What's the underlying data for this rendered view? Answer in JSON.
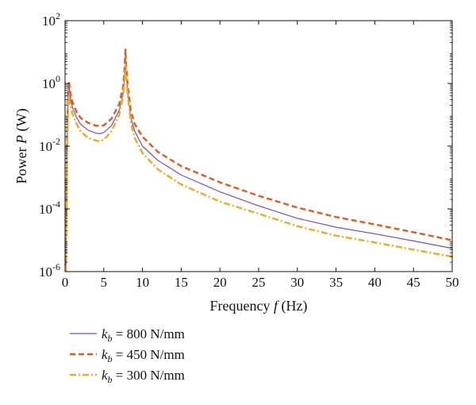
{
  "chart_data": {
    "type": "line",
    "xlabel": {
      "pre": "Frequency ",
      "var": "f",
      "post": " (Hz)"
    },
    "ylabel": {
      "pre": "Power ",
      "var": "P",
      "post": " (W)"
    },
    "xlim": [
      0,
      50
    ],
    "ylim": [
      1e-06,
      100
    ],
    "yscale": "log",
    "grid": false,
    "legend_position": "bottom-left",
    "x_ticks": [
      "0",
      "5",
      "10",
      "15",
      "20",
      "25",
      "30",
      "35",
      "40",
      "45",
      "50"
    ],
    "y_ticks": [
      {
        "base": "10",
        "exp": "-6"
      },
      {
        "base": "10",
        "exp": "-4"
      },
      {
        "base": "10",
        "exp": "-2"
      },
      {
        "base": "10",
        "exp": "0"
      },
      {
        "base": "10",
        "exp": "2"
      }
    ],
    "series": [
      {
        "name": "k_b = 800 N/mm",
        "label": {
          "sym": "k",
          "sub": "b",
          "rest": " = 800 N/mm"
        },
        "color": "#7a4db8",
        "style": "solid",
        "x": [
          0.1,
          0.25,
          0.4,
          0.5,
          0.6,
          0.8,
          1.0,
          1.5,
          2,
          3,
          4,
          4.5,
          5,
          6,
          7,
          7.5,
          7.7,
          7.8,
          7.9,
          8.1,
          8.5,
          9,
          10,
          12,
          15,
          20,
          25,
          30,
          35,
          40,
          45,
          50
        ],
        "y": [
          1e-06,
          0.01,
          0.5,
          1.0,
          0.5,
          0.25,
          0.16,
          0.08,
          0.05,
          0.032,
          0.026,
          0.025,
          0.027,
          0.045,
          0.14,
          0.5,
          2.0,
          5.5,
          2.0,
          0.5,
          0.08,
          0.03,
          0.01,
          0.0035,
          0.0012,
          0.00035,
          0.000125,
          5e-05,
          2.6e-05,
          1.6e-05,
          9.5e-06,
          5.5e-06
        ]
      },
      {
        "name": "k_b = 450 N/mm",
        "label": {
          "sym": "k",
          "sub": "b",
          "rest": " = 450 N/mm"
        },
        "color": "#e05a1e",
        "style": "dashed",
        "x": [
          0.1,
          0.25,
          0.4,
          0.5,
          0.6,
          0.8,
          1.0,
          1.5,
          2,
          3,
          4,
          4.5,
          5,
          6,
          7,
          7.5,
          7.7,
          7.8,
          7.9,
          8.1,
          8.5,
          9,
          10,
          12,
          15,
          20,
          25,
          30,
          35,
          40,
          45,
          50
        ],
        "y": [
          1e-06,
          0.02,
          0.7,
          1.2,
          0.7,
          0.35,
          0.24,
          0.12,
          0.08,
          0.055,
          0.045,
          0.044,
          0.046,
          0.075,
          0.22,
          0.8,
          3.5,
          12.0,
          3.5,
          0.8,
          0.13,
          0.05,
          0.02,
          0.0065,
          0.0023,
          0.0007,
          0.00026,
          0.00011,
          5.5e-05,
          3.2e-05,
          1.8e-05,
          1e-05
        ]
      },
      {
        "name": "k_b = 300 N/mm",
        "label": {
          "sym": "k",
          "sub": "b",
          "rest": " = 300 N/mm"
        },
        "color": "#f0aa1a",
        "style": "dashdot",
        "x": [
          0.1,
          0.25,
          0.4,
          0.5,
          0.6,
          0.8,
          1.0,
          1.5,
          2,
          3,
          4,
          4.5,
          5,
          6,
          7,
          7.5,
          7.7,
          7.8,
          7.9,
          8.1,
          8.5,
          9,
          10,
          12,
          15,
          20,
          25,
          30,
          35,
          40,
          45,
          50
        ],
        "y": [
          1e-06,
          0.005,
          0.2,
          0.4,
          0.25,
          0.15,
          0.1,
          0.05,
          0.03,
          0.018,
          0.015,
          0.0145,
          0.016,
          0.03,
          0.1,
          0.4,
          1.5,
          4.0,
          1.5,
          0.4,
          0.055,
          0.018,
          0.006,
          0.0018,
          0.0006,
          0.00017,
          7e-05,
          2.8e-05,
          1.4e-05,
          8.5e-06,
          5e-06,
          3e-06
        ]
      }
    ]
  }
}
